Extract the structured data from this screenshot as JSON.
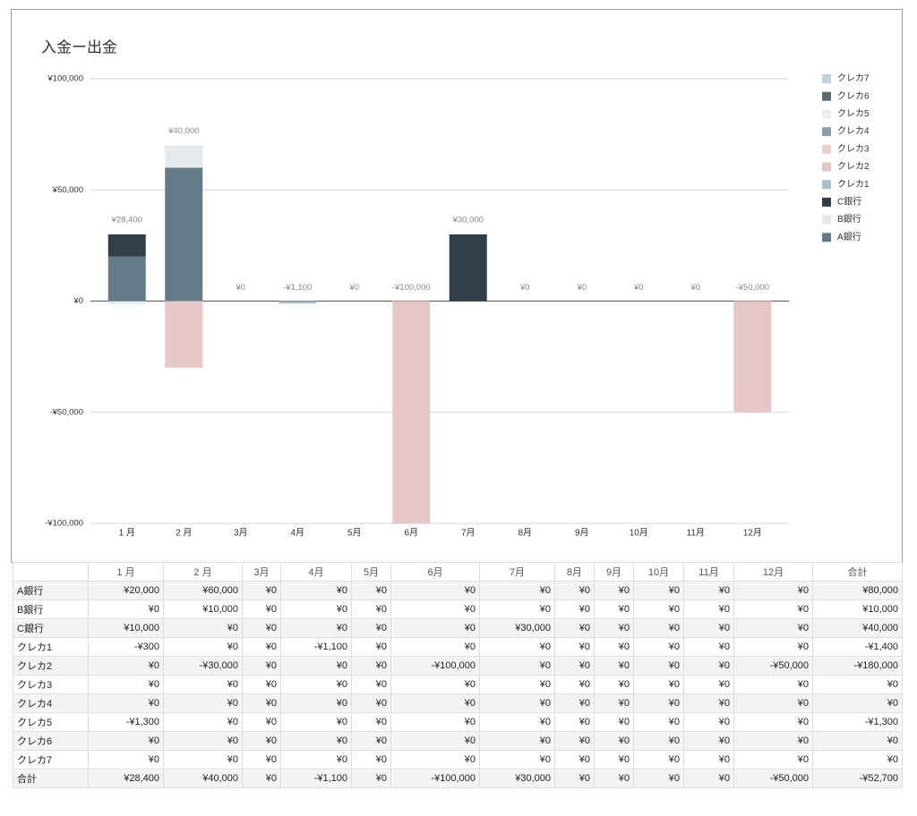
{
  "chart_data": {
    "type": "bar",
    "stacked": true,
    "title": "入金ー出金",
    "categories": [
      "1 月",
      "2 月",
      "3月",
      "4月",
      "5月",
      "6月",
      "7月",
      "8月",
      "9月",
      "10月",
      "11月",
      "12月"
    ],
    "series": [
      {
        "name": "A銀行",
        "color": "#647a87",
        "values": [
          20000,
          60000,
          0,
          0,
          0,
          0,
          0,
          0,
          0,
          0,
          0,
          0
        ]
      },
      {
        "name": "B銀行",
        "color": "#e6e9ec",
        "values": [
          0,
          10000,
          0,
          0,
          0,
          0,
          0,
          0,
          0,
          0,
          0,
          0
        ]
      },
      {
        "name": "C銀行",
        "color": "#323f48",
        "values": [
          10000,
          0,
          0,
          0,
          0,
          0,
          30000,
          0,
          0,
          0,
          0,
          0
        ]
      },
      {
        "name": "クレカ1",
        "color": "#a9bfcb",
        "values": [
          -300,
          0,
          0,
          -1100,
          0,
          0,
          0,
          0,
          0,
          0,
          0,
          0
        ]
      },
      {
        "name": "クレカ2",
        "color": "#e6c6c7",
        "values": [
          0,
          -30000,
          0,
          0,
          0,
          -100000,
          0,
          0,
          0,
          0,
          0,
          -50000
        ]
      },
      {
        "name": "クレカ3",
        "color": "#ebcfcd",
        "values": [
          0,
          0,
          0,
          0,
          0,
          0,
          0,
          0,
          0,
          0,
          0,
          0
        ]
      },
      {
        "name": "クレカ4",
        "color": "#8e9ea7",
        "values": [
          0,
          0,
          0,
          0,
          0,
          0,
          0,
          0,
          0,
          0,
          0,
          0
        ]
      },
      {
        "name": "クレカ5",
        "color": "#eceff1",
        "values": [
          -1300,
          0,
          0,
          0,
          0,
          0,
          0,
          0,
          0,
          0,
          0,
          0
        ]
      },
      {
        "name": "クレカ6",
        "color": "#5f6b73",
        "values": [
          0,
          0,
          0,
          0,
          0,
          0,
          0,
          0,
          0,
          0,
          0,
          0
        ]
      },
      {
        "name": "クレカ7",
        "color": "#bfd1da",
        "values": [
          0,
          0,
          0,
          0,
          0,
          0,
          0,
          0,
          0,
          0,
          0,
          0
        ]
      }
    ],
    "totals": {
      "values": [
        28400,
        40000,
        0,
        -1100,
        0,
        -100000,
        30000,
        0,
        0,
        0,
        0,
        -50000
      ],
      "value_labels": [
        "¥28,400",
        "¥40,000",
        "¥0",
        "-¥1,100",
        "¥0",
        "-¥100,000",
        "¥30,000",
        "¥0",
        "¥0",
        "¥0",
        "¥0",
        "-¥50,000"
      ]
    },
    "ylim": [
      -100000,
      100000
    ],
    "yticks": [
      {
        "value": -100000,
        "label": "-¥100,000"
      },
      {
        "value": -50000,
        "label": "-¥50,000"
      },
      {
        "value": 0,
        "label": "¥0"
      },
      {
        "value": 50000,
        "label": "¥50,000"
      },
      {
        "value": 100000,
        "label": "¥100,000"
      }
    ],
    "grid": true,
    "legend": "right"
  },
  "table": {
    "columns": [
      "1 月",
      "2 月",
      "3月",
      "4月",
      "5月",
      "6月",
      "7月",
      "8月",
      "9月",
      "10月",
      "11月",
      "12月",
      "合計"
    ],
    "rows": [
      [
        "A銀行",
        "¥20,000",
        "¥60,000",
        "¥0",
        "¥0",
        "¥0",
        "¥0",
        "¥0",
        "¥0",
        "¥0",
        "¥0",
        "¥0",
        "¥0",
        "¥80,000"
      ],
      [
        "B銀行",
        "¥0",
        "¥10,000",
        "¥0",
        "¥0",
        "¥0",
        "¥0",
        "¥0",
        "¥0",
        "¥0",
        "¥0",
        "¥0",
        "¥0",
        "¥10,000"
      ],
      [
        "C銀行",
        "¥10,000",
        "¥0",
        "¥0",
        "¥0",
        "¥0",
        "¥0",
        "¥30,000",
        "¥0",
        "¥0",
        "¥0",
        "¥0",
        "¥0",
        "¥40,000"
      ],
      [
        "クレカ1",
        "-¥300",
        "¥0",
        "¥0",
        "-¥1,100",
        "¥0",
        "¥0",
        "¥0",
        "¥0",
        "¥0",
        "¥0",
        "¥0",
        "¥0",
        "-¥1,400"
      ],
      [
        "クレカ2",
        "¥0",
        "-¥30,000",
        "¥0",
        "¥0",
        "¥0",
        "-¥100,000",
        "¥0",
        "¥0",
        "¥0",
        "¥0",
        "¥0",
        "-¥50,000",
        "-¥180,000"
      ],
      [
        "クレカ3",
        "¥0",
        "¥0",
        "¥0",
        "¥0",
        "¥0",
        "¥0",
        "¥0",
        "¥0",
        "¥0",
        "¥0",
        "¥0",
        "¥0",
        "¥0"
      ],
      [
        "クレカ4",
        "¥0",
        "¥0",
        "¥0",
        "¥0",
        "¥0",
        "¥0",
        "¥0",
        "¥0",
        "¥0",
        "¥0",
        "¥0",
        "¥0",
        "¥0"
      ],
      [
        "クレカ5",
        "-¥1,300",
        "¥0",
        "¥0",
        "¥0",
        "¥0",
        "¥0",
        "¥0",
        "¥0",
        "¥0",
        "¥0",
        "¥0",
        "¥0",
        "-¥1,300"
      ],
      [
        "クレカ6",
        "¥0",
        "¥0",
        "¥0",
        "¥0",
        "¥0",
        "¥0",
        "¥0",
        "¥0",
        "¥0",
        "¥0",
        "¥0",
        "¥0",
        "¥0"
      ],
      [
        "クレカ7",
        "¥0",
        "¥0",
        "¥0",
        "¥0",
        "¥0",
        "¥0",
        "¥0",
        "¥0",
        "¥0",
        "¥0",
        "¥0",
        "¥0",
        "¥0"
      ],
      [
        "合計",
        "¥28,400",
        "¥40,000",
        "¥0",
        "-¥1,100",
        "¥0",
        "-¥100,000",
        "¥30,000",
        "¥0",
        "¥0",
        "¥0",
        "¥0",
        "-¥50,000",
        "-¥52,700"
      ]
    ]
  }
}
